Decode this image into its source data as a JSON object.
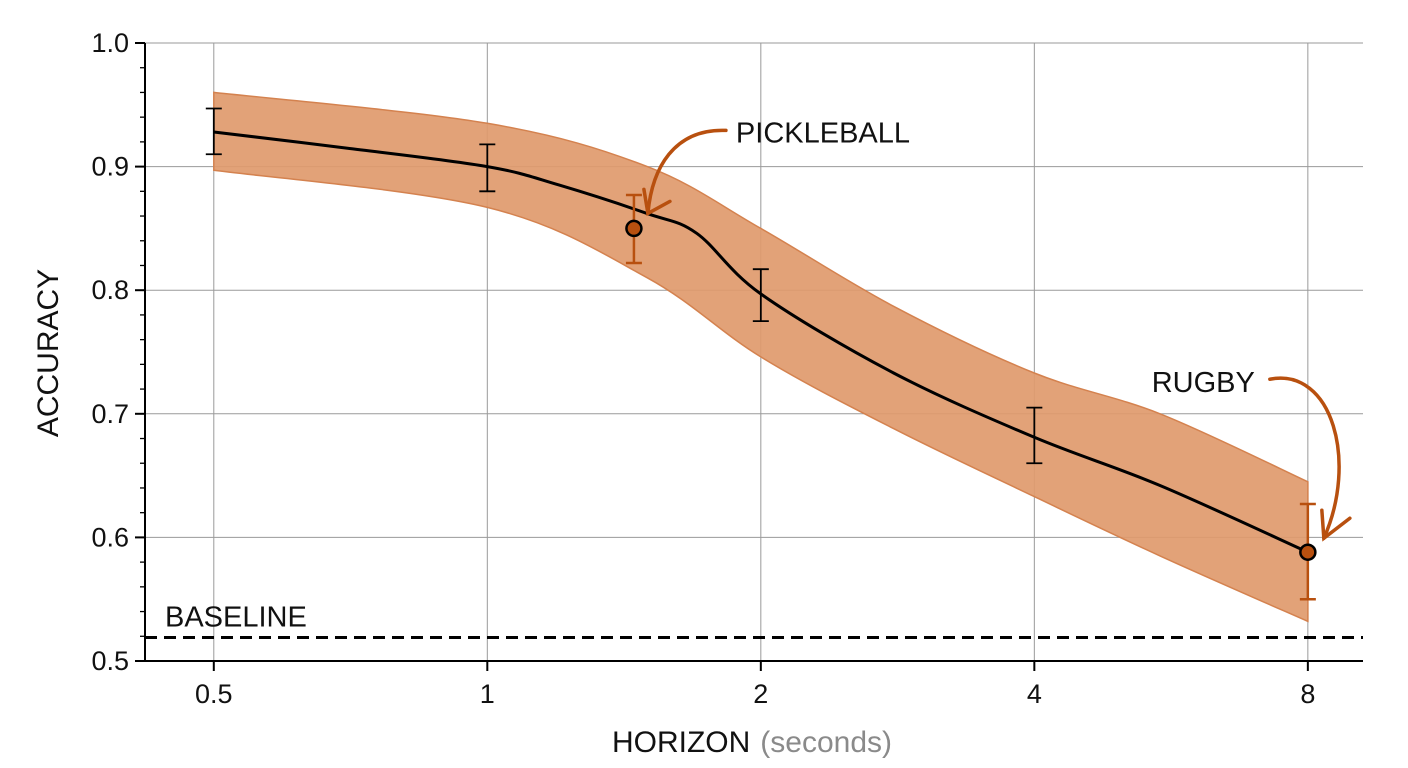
{
  "chart_data": {
    "type": "line",
    "x_scale": "log2",
    "xlabel": "HORIZON",
    "xlabel_unit": "(seconds)",
    "ylabel": "ACCURACY",
    "xlim": [
      0.42,
      9.2
    ],
    "ylim": [
      0.5,
      1.0
    ],
    "x_ticks": [
      0.5,
      1,
      2,
      4,
      8
    ],
    "x_tick_labels": [
      "0.5",
      "1",
      "2",
      "4",
      "8"
    ],
    "y_ticks": [
      0.5,
      0.6,
      0.7,
      0.8,
      0.9,
      1.0
    ],
    "y_tick_labels": [
      "0.5",
      "0.6",
      "0.7",
      "0.8",
      "0.9",
      "1.0"
    ],
    "grid": true,
    "series": [
      {
        "curve": [
          [
            0.5,
            0.928
          ],
          [
            0.7,
            0.915
          ],
          [
            1,
            0.9
          ],
          [
            1.2,
            0.885
          ],
          [
            1.5,
            0.862
          ],
          [
            1.7,
            0.846
          ],
          [
            2,
            0.797
          ],
          [
            2.8,
            0.733
          ],
          [
            4,
            0.681
          ],
          [
            5.5,
            0.642
          ],
          [
            8,
            0.588
          ]
        ],
        "band_upper": [
          [
            0.5,
            0.96
          ],
          [
            1,
            0.935
          ],
          [
            1.5,
            0.9
          ],
          [
            2,
            0.85
          ],
          [
            2.8,
            0.787
          ],
          [
            4,
            0.733
          ],
          [
            5.5,
            0.7
          ],
          [
            8,
            0.645
          ]
        ],
        "band_lower": [
          [
            0.5,
            0.897
          ],
          [
            1,
            0.867
          ],
          [
            1.5,
            0.81
          ],
          [
            2,
            0.746
          ],
          [
            2.8,
            0.688
          ],
          [
            4,
            0.633
          ],
          [
            5.5,
            0.585
          ],
          [
            8,
            0.532
          ]
        ],
        "points": [
          {
            "x": 0.5,
            "y": 0.928,
            "err_low": 0.91,
            "err_high": 0.947,
            "highlight": false
          },
          {
            "x": 1,
            "y": 0.9,
            "err_low": 0.88,
            "err_high": 0.918,
            "highlight": false
          },
          {
            "x": 1.45,
            "y": 0.85,
            "err_low": 0.822,
            "err_high": 0.877,
            "highlight": true
          },
          {
            "x": 2,
            "y": 0.797,
            "err_low": 0.775,
            "err_high": 0.817,
            "highlight": false
          },
          {
            "x": 4,
            "y": 0.681,
            "err_low": 0.66,
            "err_high": 0.705,
            "highlight": false
          },
          {
            "x": 8,
            "y": 0.588,
            "err_low": 0.55,
            "err_high": 0.627,
            "highlight": true
          }
        ]
      }
    ],
    "baseline": {
      "label": "BASELINE",
      "y": 0.519
    },
    "annotations": [
      {
        "text": "PICKLEBALL",
        "x": 1.45,
        "y": 0.85
      },
      {
        "text": "RUGBY",
        "x": 8,
        "y": 0.588
      }
    ]
  },
  "colors": {
    "band": "#e09a6c",
    "band_edge": "#d4824f",
    "accent": "#b8500f",
    "line": "#000000",
    "grid": "#9a9a9a"
  }
}
